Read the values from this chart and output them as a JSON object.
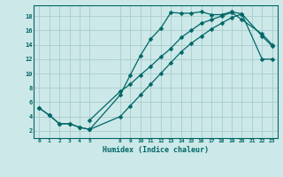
{
  "xlabel": "Humidex (Indice chaleur)",
  "bg_color": "#cce8e8",
  "line_color": "#006666",
  "grid_color": "#aacccc",
  "xticks": [
    0,
    1,
    2,
    3,
    4,
    5,
    8,
    9,
    10,
    11,
    12,
    13,
    14,
    15,
    16,
    17,
    18,
    19,
    20,
    21,
    22,
    23
  ],
  "yticks": [
    2,
    4,
    6,
    8,
    10,
    12,
    14,
    16,
    18
  ],
  "ylim": [
    1.0,
    19.5
  ],
  "xlim": [
    -0.5,
    23.5
  ],
  "line1_x": [
    0,
    1,
    2,
    3,
    4,
    5,
    8,
    9,
    10,
    11,
    12,
    13,
    14,
    15,
    16,
    17,
    18,
    19,
    20,
    22,
    23
  ],
  "line1_y": [
    5.2,
    4.2,
    3.0,
    3.0,
    2.5,
    2.2,
    7.0,
    9.8,
    12.5,
    14.8,
    16.3,
    18.5,
    18.4,
    18.4,
    18.6,
    18.2,
    18.2,
    18.6,
    18.3,
    15.2,
    13.8
  ],
  "line2_x": [
    0,
    1,
    2,
    3,
    4,
    5,
    8,
    9,
    10,
    11,
    12,
    13,
    14,
    15,
    16,
    17,
    18,
    19,
    20,
    22,
    23
  ],
  "line2_y": [
    5.2,
    4.2,
    3.0,
    3.0,
    2.5,
    2.2,
    4.0,
    5.5,
    7.0,
    8.5,
    10.0,
    11.5,
    13.0,
    14.2,
    15.2,
    16.2,
    17.0,
    17.8,
    18.3,
    12.0,
    12.0
  ],
  "line3_x": [
    5,
    8,
    9,
    10,
    11,
    12,
    13,
    14,
    15,
    16,
    17,
    18,
    19,
    20,
    22,
    23
  ],
  "line3_y": [
    3.5,
    7.5,
    8.5,
    9.8,
    11.0,
    12.3,
    13.5,
    15.0,
    16.0,
    17.0,
    17.5,
    18.0,
    18.5,
    17.5,
    15.5,
    14.0
  ]
}
